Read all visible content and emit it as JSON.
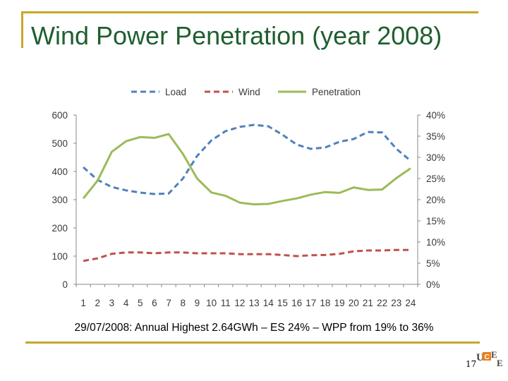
{
  "slide": {
    "title": "Wind Power Penetration (year 2008)",
    "caption": "29/07/2008: Annual Highest 2.64GWh – ES 24% – WPP from 19% to 36%",
    "page_number": "17",
    "accent_color": "#c8a62a",
    "title_color": "#1f5f2f",
    "logo_icon": "university-logo-icon",
    "logo_text": "UCE"
  },
  "chart_data": {
    "type": "line",
    "x": [
      "1",
      "2",
      "3",
      "4",
      "5",
      "6",
      "7",
      "8",
      "9",
      "10",
      "11",
      "12",
      "13",
      "14",
      "15",
      "16",
      "17",
      "18",
      "19",
      "20",
      "21",
      "22",
      "23",
      "24"
    ],
    "series": [
      {
        "name": "Load",
        "axis": "left",
        "style": "dashed",
        "color": "#4f81bd",
        "values": [
          415,
          370,
          345,
          333,
          325,
          320,
          322,
          375,
          455,
          510,
          543,
          558,
          565,
          560,
          530,
          495,
          480,
          485,
          505,
          515,
          540,
          538,
          480,
          438
        ]
      },
      {
        "name": "Wind",
        "axis": "left",
        "style": "dashed",
        "color": "#c0504d",
        "values": [
          83,
          92,
          108,
          113,
          113,
          110,
          113,
          113,
          110,
          110,
          110,
          107,
          107,
          107,
          104,
          100,
          103,
          104,
          108,
          117,
          120,
          120,
          122,
          122
        ]
      },
      {
        "name": "Penetration",
        "axis": "right",
        "style": "solid",
        "color": "#9bbb59",
        "values": [
          20.3,
          24.5,
          31.3,
          33.8,
          34.8,
          34.6,
          35.5,
          30.8,
          25.0,
          21.7,
          20.9,
          19.3,
          18.9,
          19.0,
          19.7,
          20.3,
          21.2,
          21.8,
          21.6,
          22.9,
          22.3,
          22.4,
          25.1,
          27.4
        ]
      }
    ],
    "left_axis": {
      "ylim": [
        0,
        600
      ],
      "ticks": [
        "0",
        "100",
        "200",
        "300",
        "400",
        "500",
        "600"
      ]
    },
    "right_axis": {
      "ylim": [
        0,
        40
      ],
      "ticks": [
        "0%",
        "5%",
        "10%",
        "15%",
        "20%",
        "25%",
        "30%",
        "35%",
        "40%"
      ]
    },
    "grid": false,
    "legend_position": "top"
  }
}
